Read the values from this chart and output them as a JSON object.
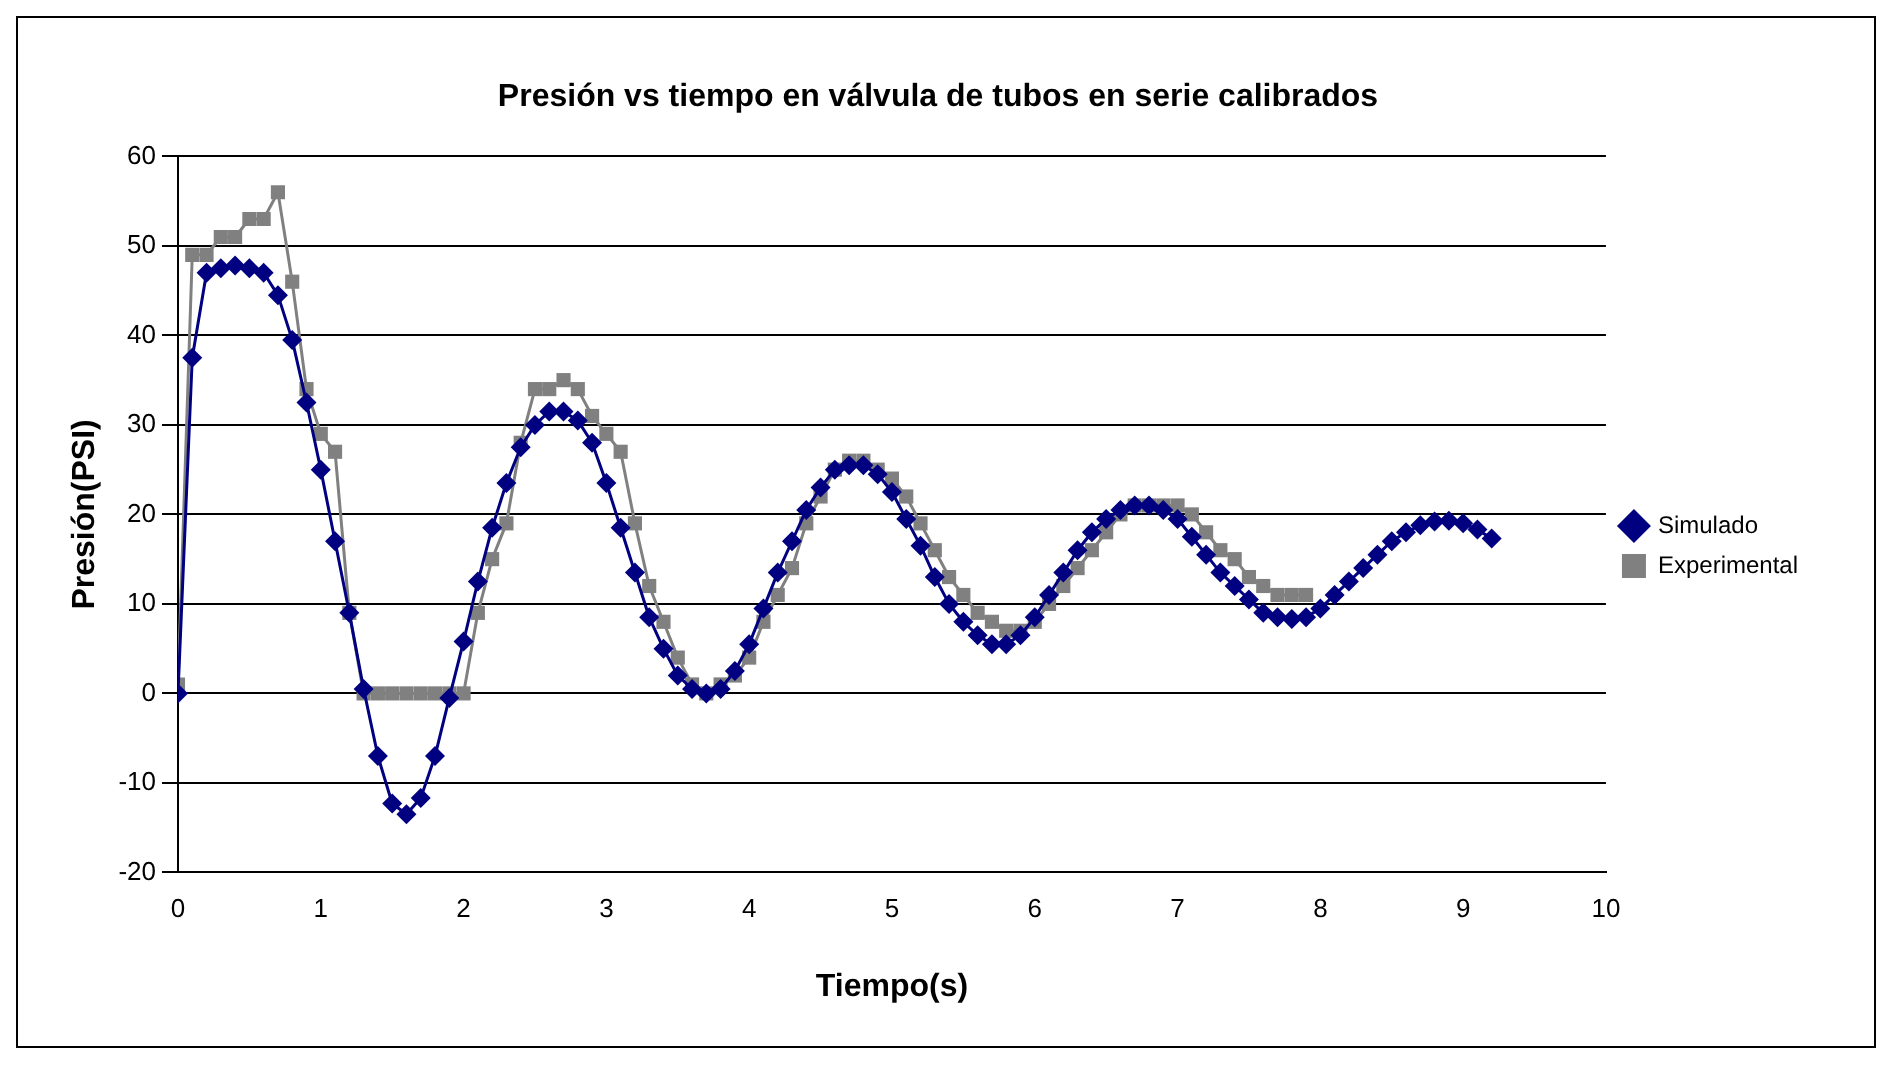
{
  "chart_data": {
    "type": "line",
    "title": "Presión vs tiempo en válvula de tubos en serie calibrados",
    "xlabel": "Tiempo(s)",
    "ylabel": "Presión(PSI)",
    "xlim": [
      0,
      10
    ],
    "xticks": [
      0,
      1,
      2,
      3,
      4,
      5,
      6,
      7,
      8,
      9,
      10
    ],
    "ylim": [
      -20,
      60
    ],
    "yticks": [
      -20,
      -10,
      0,
      10,
      20,
      30,
      40,
      50,
      60
    ],
    "grid": "y",
    "legend": "right",
    "line_style": "solid",
    "series": [
      {
        "name": "Simulado",
        "color": "#000080",
        "marker": "diamond",
        "x": [
          0,
          0.1,
          0.2,
          0.3,
          0.4,
          0.5,
          0.6,
          0.7,
          0.8,
          0.9,
          1.0,
          1.1,
          1.2,
          1.3,
          1.4,
          1.5,
          1.6,
          1.7,
          1.8,
          1.9,
          2.0,
          2.1,
          2.2,
          2.3,
          2.4,
          2.5,
          2.6,
          2.7,
          2.8,
          2.9,
          3.0,
          3.1,
          3.2,
          3.3,
          3.4,
          3.5,
          3.6,
          3.7,
          3.8,
          3.9,
          4.0,
          4.1,
          4.2,
          4.3,
          4.4,
          4.5,
          4.6,
          4.7,
          4.8,
          4.9,
          5.0,
          5.1,
          5.2,
          5.3,
          5.4,
          5.5,
          5.6,
          5.7,
          5.8,
          5.9,
          6.0,
          6.1,
          6.2,
          6.3,
          6.4,
          6.5,
          6.6,
          6.7,
          6.8,
          6.9,
          7.0,
          7.1,
          7.2,
          7.3,
          7.4,
          7.5,
          7.6,
          7.7,
          7.8,
          7.9,
          8.0,
          8.1,
          8.2,
          8.3,
          8.4,
          8.5,
          8.6,
          8.7,
          8.8,
          8.9,
          9.0,
          9.1,
          9.2
        ],
        "values": [
          0,
          37.5,
          47,
          47.5,
          47.8,
          47.5,
          47,
          44.5,
          39.5,
          32.5,
          25,
          17,
          9,
          0.5,
          -7,
          -12.3,
          -13.5,
          -11.7,
          -7,
          -0.5,
          5.8,
          12.5,
          18.5,
          23.5,
          27.5,
          30,
          31.5,
          31.5,
          30.5,
          28,
          23.5,
          18.5,
          13.5,
          8.5,
          5,
          2,
          0.5,
          0,
          0.5,
          2.5,
          5.5,
          9.5,
          13.5,
          17,
          20.5,
          23,
          25,
          25.5,
          25.5,
          24.5,
          22.5,
          19.5,
          16.5,
          13,
          10,
          8,
          6.5,
          5.5,
          5.5,
          6.5,
          8.5,
          11,
          13.5,
          16,
          18,
          19.5,
          20.5,
          21,
          21,
          20.5,
          19.5,
          17.5,
          15.5,
          13.5,
          12,
          10.5,
          9,
          8.5,
          8.3,
          8.5,
          9.5,
          11,
          12.5,
          14,
          15.5,
          17,
          18,
          18.8,
          19.2,
          19.3,
          19,
          18.3,
          17.3
        ]
      },
      {
        "name": "Experimental",
        "color": "#808080",
        "marker": "square",
        "x": [
          0,
          0.1,
          0.2,
          0.3,
          0.4,
          0.5,
          0.6,
          0.7,
          0.8,
          0.9,
          1.0,
          1.1,
          1.2,
          1.3,
          1.4,
          1.5,
          1.6,
          1.7,
          1.8,
          1.9,
          2.0,
          2.1,
          2.2,
          2.3,
          2.4,
          2.5,
          2.6,
          2.7,
          2.8,
          2.9,
          3.0,
          3.1,
          3.2,
          3.3,
          3.4,
          3.5,
          3.6,
          3.7,
          3.8,
          3.9,
          4.0,
          4.1,
          4.2,
          4.3,
          4.4,
          4.5,
          4.6,
          4.7,
          4.8,
          4.9,
          5.0,
          5.1,
          5.2,
          5.3,
          5.4,
          5.5,
          5.6,
          5.7,
          5.8,
          5.9,
          6.0,
          6.1,
          6.2,
          6.3,
          6.4,
          6.5,
          6.6,
          6.7,
          6.8,
          6.9,
          7.0,
          7.1,
          7.2,
          7.3,
          7.4,
          7.5,
          7.6,
          7.7,
          7.8,
          7.9
        ],
        "values": [
          1,
          49,
          49,
          51,
          51,
          53,
          53,
          56,
          46,
          34,
          29,
          27,
          9,
          0,
          0,
          0,
          0,
          0,
          0,
          0,
          0,
          9,
          15,
          19,
          28,
          34,
          34,
          35,
          34,
          31,
          29,
          27,
          19,
          12,
          8,
          4,
          1,
          0,
          1,
          2,
          4,
          8,
          11,
          14,
          19,
          22,
          25,
          26,
          26,
          25,
          24,
          22,
          19,
          16,
          13,
          11,
          9,
          8,
          7,
          7,
          8,
          10,
          12,
          14,
          16,
          18,
          20,
          21,
          21,
          21,
          21,
          20,
          18,
          16,
          15,
          13,
          12,
          11,
          11,
          11
        ]
      }
    ]
  }
}
